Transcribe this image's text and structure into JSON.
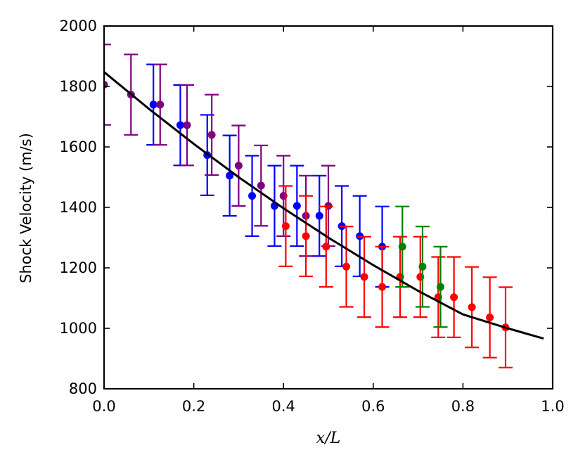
{
  "chart_data": {
    "type": "scatter",
    "title": "",
    "xlabel": "x/L",
    "ylabel": "Shock Velocity (m/s)",
    "xlim": [
      0.0,
      1.0
    ],
    "ylim": [
      800,
      2000
    ],
    "xticks": [
      "0.0",
      "0.2",
      "0.4",
      "0.6",
      "0.8",
      "1.0"
    ],
    "yticks": [
      "800",
      "1000",
      "1200",
      "1400",
      "1600",
      "1800",
      "2000"
    ],
    "xtick_values": [
      0.0,
      0.2,
      0.4,
      0.6,
      0.8,
      1.0
    ],
    "ytick_values": [
      800,
      1000,
      1200,
      1400,
      1600,
      1800,
      2000
    ],
    "grid": false,
    "series": [
      {
        "color": "#0000ff",
        "points": [
          {
            "x": 0.11,
            "y": 1740,
            "err": 133
          },
          {
            "x": 0.17,
            "y": 1672,
            "err": 133
          },
          {
            "x": 0.23,
            "y": 1573,
            "err": 133
          },
          {
            "x": 0.28,
            "y": 1505,
            "err": 133
          },
          {
            "x": 0.33,
            "y": 1438,
            "err": 133
          },
          {
            "x": 0.38,
            "y": 1405,
            "err": 133
          },
          {
            "x": 0.43,
            "y": 1405,
            "err": 133
          },
          {
            "x": 0.48,
            "y": 1372,
            "err": 133
          },
          {
            "x": 0.53,
            "y": 1338,
            "err": 133
          },
          {
            "x": 0.57,
            "y": 1305,
            "err": 133
          },
          {
            "x": 0.62,
            "y": 1270,
            "err": 133
          }
        ]
      },
      {
        "color": "#800080",
        "points": [
          {
            "x": 0.0,
            "y": 1806,
            "err": 133
          },
          {
            "x": 0.06,
            "y": 1773,
            "err": 133
          },
          {
            "x": 0.125,
            "y": 1740,
            "err": 133
          },
          {
            "x": 0.185,
            "y": 1672,
            "err": 133
          },
          {
            "x": 0.24,
            "y": 1640,
            "err": 133
          },
          {
            "x": 0.3,
            "y": 1538,
            "err": 133
          },
          {
            "x": 0.35,
            "y": 1472,
            "err": 133
          },
          {
            "x": 0.4,
            "y": 1438,
            "err": 133
          },
          {
            "x": 0.45,
            "y": 1372,
            "err": 133
          },
          {
            "x": 0.5,
            "y": 1405,
            "err": 133
          }
        ]
      },
      {
        "color": "#ff0000",
        "points": [
          {
            "x": 0.405,
            "y": 1338,
            "err": 133
          },
          {
            "x": 0.45,
            "y": 1305,
            "err": 133
          },
          {
            "x": 0.495,
            "y": 1270,
            "err": 133
          },
          {
            "x": 0.54,
            "y": 1204,
            "err": 133
          },
          {
            "x": 0.58,
            "y": 1170,
            "err": 133
          },
          {
            "x": 0.62,
            "y": 1137,
            "err": 133
          },
          {
            "x": 0.66,
            "y": 1170,
            "err": 133
          },
          {
            "x": 0.705,
            "y": 1170,
            "err": 133
          },
          {
            "x": 0.745,
            "y": 1103,
            "err": 133
          },
          {
            "x": 0.78,
            "y": 1103,
            "err": 133
          },
          {
            "x": 0.82,
            "y": 1070,
            "err": 133
          },
          {
            "x": 0.86,
            "y": 1036,
            "err": 133
          },
          {
            "x": 0.895,
            "y": 1003,
            "err": 133
          }
        ]
      },
      {
        "color": "#008000",
        "points": [
          {
            "x": 0.665,
            "y": 1270,
            "err": 133
          },
          {
            "x": 0.71,
            "y": 1204,
            "err": 133
          },
          {
            "x": 0.75,
            "y": 1137,
            "err": 133
          }
        ]
      }
    ],
    "fit_curve": {
      "color": "#000000",
      "points": [
        {
          "x": 0.0,
          "y": 1848
        },
        {
          "x": 0.1,
          "y": 1726
        },
        {
          "x": 0.2,
          "y": 1610
        },
        {
          "x": 0.3,
          "y": 1500
        },
        {
          "x": 0.4,
          "y": 1397
        },
        {
          "x": 0.5,
          "y": 1300
        },
        {
          "x": 0.6,
          "y": 1209
        },
        {
          "x": 0.7,
          "y": 1124
        },
        {
          "x": 0.8,
          "y": 1046
        },
        {
          "x": 0.9,
          "y": 1000
        },
        {
          "x": 0.98,
          "y": 966
        }
      ]
    }
  }
}
